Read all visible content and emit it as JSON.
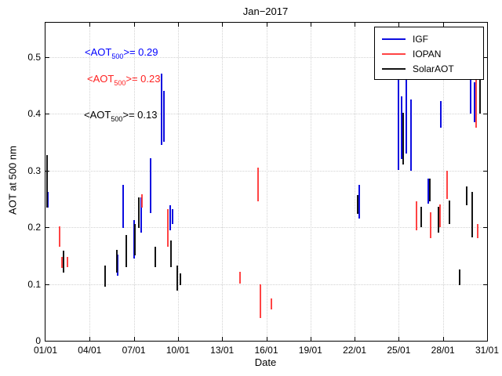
{
  "chart_data": {
    "type": "scatter",
    "title": "Jan−2017",
    "xlabel": "Date",
    "ylabel": "AOT at 500 nm",
    "xlim": [
      1,
      31
    ],
    "ylim": [
      0,
      0.56
    ],
    "grid": true,
    "legend_position": "top-right",
    "xtick_values": [
      1,
      4,
      7,
      10,
      13,
      16,
      19,
      22,
      25,
      28,
      31
    ],
    "xtick_labels": [
      "01/01",
      "04/01",
      "07/01",
      "10/01",
      "13/01",
      "16/01",
      "19/01",
      "22/01",
      "25/01",
      "28/01",
      "31/01"
    ],
    "ytick_values": [
      0,
      0.1,
      0.2,
      0.3,
      0.4,
      0.5
    ],
    "ytick_labels": [
      "0",
      "0.1",
      "0.2",
      "0.3",
      "0.4",
      "0.5"
    ],
    "annotations": [
      {
        "pre": "<AOT",
        "sub": "500",
        "post": ">= 0.29",
        "color": "#0000ff",
        "series": "IGF",
        "mean": 0.29
      },
      {
        "pre": "<AOT",
        "sub": "500",
        "post": ">= 0.23",
        "color": "#ff2020",
        "series": "IOPAN",
        "mean": 0.23
      },
      {
        "pre": "<AOT",
        "sub": "500",
        "post": ">= 0.13",
        "color": "#000000",
        "series": "SolarAOT",
        "mean": 0.13
      }
    ],
    "series": [
      {
        "name": "IGF",
        "color": "#0d0de0",
        "mean_aot_500": 0.29,
        "segments": [
          [
            1.15,
            0.235,
            0.262
          ],
          [
            5.9,
            0.115,
            0.152
          ],
          [
            6.25,
            0.198,
            0.275
          ],
          [
            7.0,
            0.145,
            0.212
          ],
          [
            7.5,
            0.19,
            0.252
          ],
          [
            8.15,
            0.225,
            0.322
          ],
          [
            8.9,
            0.345,
            0.47
          ],
          [
            9.05,
            0.35,
            0.44
          ],
          [
            9.45,
            0.195,
            0.238
          ],
          [
            9.65,
            0.205,
            0.232
          ],
          [
            22.3,
            0.215,
            0.275
          ],
          [
            25.0,
            0.3,
            0.467
          ],
          [
            25.2,
            0.32,
            0.43
          ],
          [
            25.5,
            0.33,
            0.46
          ],
          [
            25.85,
            0.3,
            0.425
          ],
          [
            27.0,
            0.242,
            0.285
          ],
          [
            27.85,
            0.375,
            0.422
          ],
          [
            29.9,
            0.4,
            0.467
          ],
          [
            30.15,
            0.385,
            0.455
          ]
        ]
      },
      {
        "name": "IOPAN",
        "color": "#ff4444",
        "mean_aot_500": 0.23,
        "segments": [
          [
            1.95,
            0.165,
            0.202
          ],
          [
            2.1,
            0.128,
            0.148
          ],
          [
            2.5,
            0.13,
            0.147
          ],
          [
            7.55,
            0.235,
            0.258
          ],
          [
            9.3,
            0.165,
            0.232
          ],
          [
            14.2,
            0.1,
            0.121
          ],
          [
            15.45,
            0.245,
            0.305
          ],
          [
            15.6,
            0.04,
            0.1
          ],
          [
            16.35,
            0.055,
            0.075
          ],
          [
            26.2,
            0.195,
            0.245
          ],
          [
            27.15,
            0.18,
            0.226
          ],
          [
            27.8,
            0.2,
            0.24
          ],
          [
            28.3,
            0.25,
            0.3
          ],
          [
            30.25,
            0.375,
            0.46
          ],
          [
            30.35,
            0.18,
            0.206
          ]
        ]
      },
      {
        "name": "SolarAOT",
        "color": "#141414",
        "mean_aot_500": 0.13,
        "segments": [
          [
            1.1,
            0.235,
            0.327
          ],
          [
            2.2,
            0.12,
            0.158
          ],
          [
            5.05,
            0.095,
            0.132
          ],
          [
            5.85,
            0.12,
            0.16
          ],
          [
            6.5,
            0.13,
            0.186
          ],
          [
            7.1,
            0.15,
            0.206
          ],
          [
            7.35,
            0.198,
            0.252
          ],
          [
            8.45,
            0.13,
            0.166
          ],
          [
            9.5,
            0.13,
            0.176
          ],
          [
            9.95,
            0.088,
            0.132
          ],
          [
            10.15,
            0.098,
            0.118
          ],
          [
            22.2,
            0.223,
            0.256
          ],
          [
            25.3,
            0.31,
            0.402
          ],
          [
            26.5,
            0.2,
            0.236
          ],
          [
            27.1,
            0.245,
            0.286
          ],
          [
            27.7,
            0.19,
            0.236
          ],
          [
            28.45,
            0.205,
            0.247
          ],
          [
            29.15,
            0.098,
            0.126
          ],
          [
            29.6,
            0.238,
            0.272
          ],
          [
            30.0,
            0.182,
            0.262
          ],
          [
            30.5,
            0.4,
            0.46
          ]
        ]
      }
    ]
  }
}
